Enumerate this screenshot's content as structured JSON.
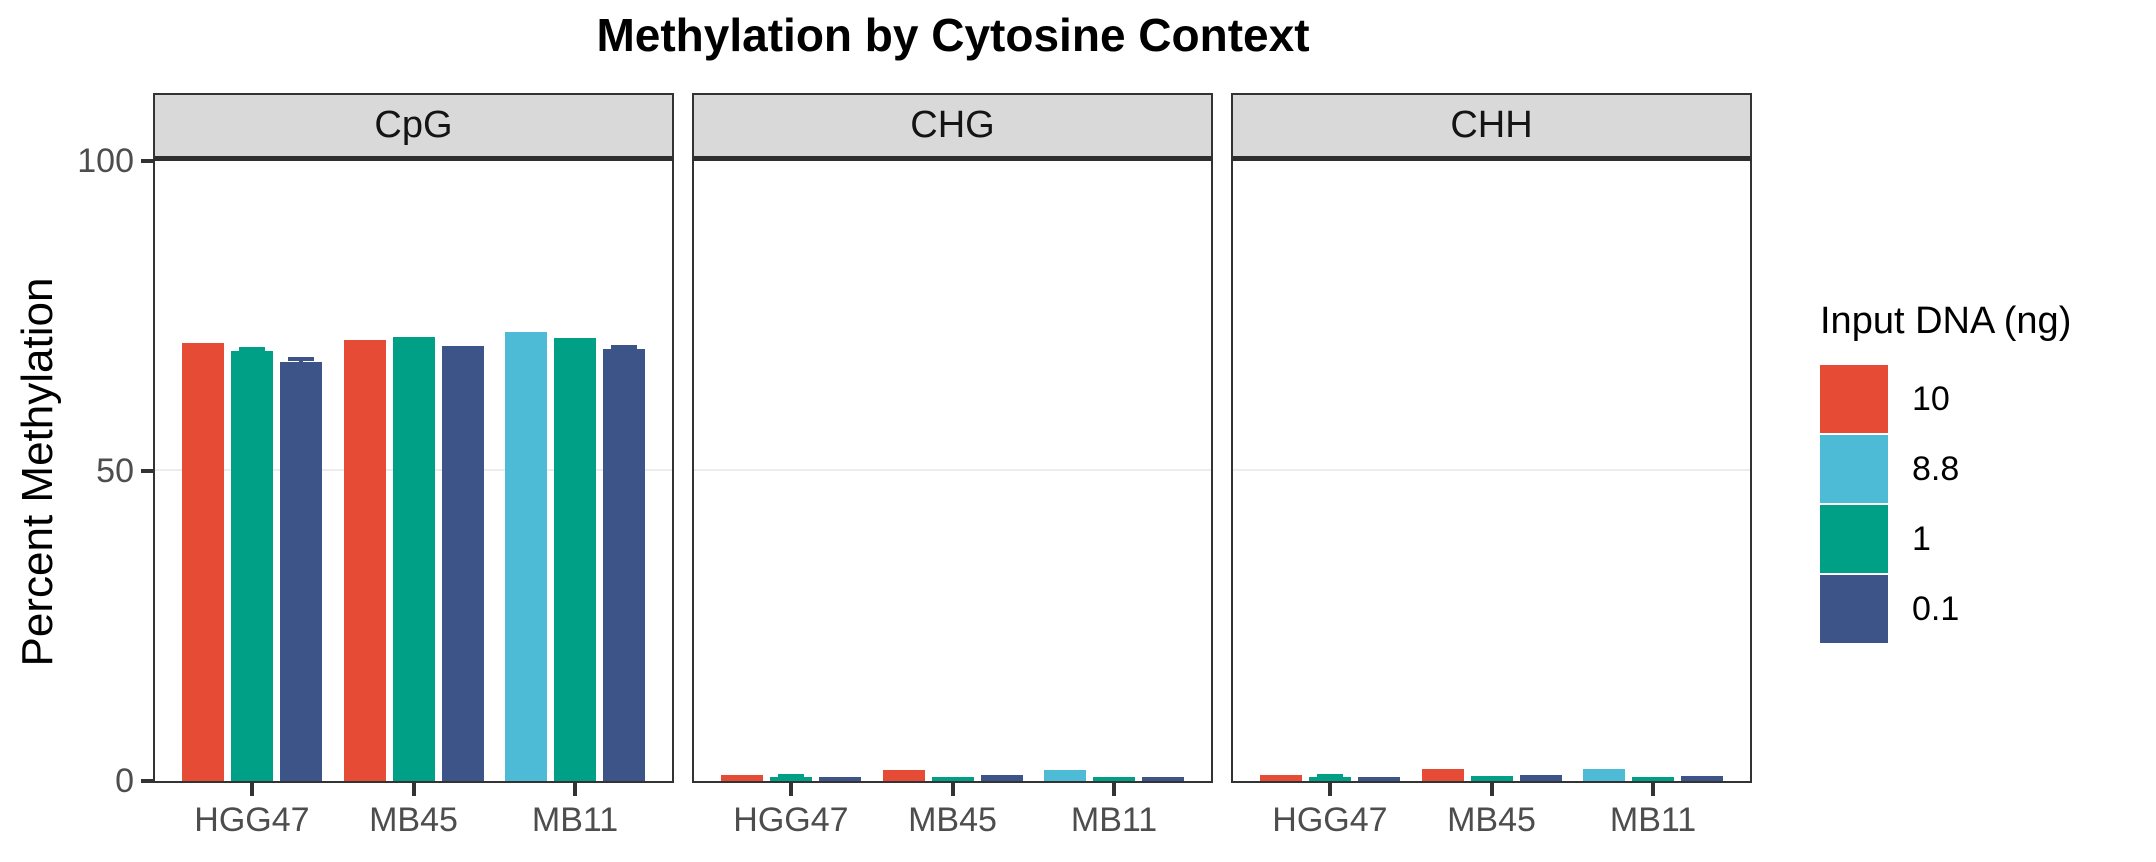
{
  "chart_data": {
    "type": "bar",
    "title": "Methylation by Cytosine Context",
    "ylabel": "Percent Methylation",
    "xlabel": "",
    "ylim": [
      0,
      100
    ],
    "yticks": [
      0,
      50,
      100
    ],
    "grid": {
      "y_gridline_at": 50,
      "gridline_color": "#ededed"
    },
    "strip_fill": "#D9D9D9",
    "axis_text_color": "#4d4d4d",
    "series_order": [
      "10",
      "8.8",
      "1",
      "0.1"
    ],
    "colors": {
      "10": "#E64B35",
      "8.8": "#4DBBD5",
      "1": "#00A087",
      "0.1": "#3C5488"
    },
    "facets": [
      {
        "label": "CpG",
        "groups": [
          {
            "category": "HGG47",
            "bars": [
              {
                "series": "10",
                "value": 70.6,
                "se": 0
              },
              {
                "series": "1",
                "value": 69.4,
                "se": 0.6
              },
              {
                "series": "0.1",
                "value": 67.6,
                "se": 0.8
              }
            ]
          },
          {
            "category": "MB45",
            "bars": [
              {
                "series": "10",
                "value": 71.2,
                "se": 0
              },
              {
                "series": "1",
                "value": 71.6,
                "se": 0
              },
              {
                "series": "0.1",
                "value": 70.1,
                "se": 0
              }
            ]
          },
          {
            "category": "MB11",
            "bars": [
              {
                "series": "8.8",
                "value": 72.4,
                "se": 0
              },
              {
                "series": "1",
                "value": 71.4,
                "se": 0
              },
              {
                "series": "0.1",
                "value": 69.7,
                "se": 0.7
              }
            ]
          }
        ]
      },
      {
        "label": "CHG",
        "groups": [
          {
            "category": "HGG47",
            "bars": [
              {
                "series": "10",
                "value": 0.9,
                "se": 0
              },
              {
                "series": "1",
                "value": 0.6,
                "se": 0.15
              },
              {
                "series": "0.1",
                "value": 0.6,
                "se": 0
              }
            ]
          },
          {
            "category": "MB45",
            "bars": [
              {
                "series": "10",
                "value": 1.8,
                "se": 0
              },
              {
                "series": "1",
                "value": 0.7,
                "se": 0
              },
              {
                "series": "0.1",
                "value": 1.0,
                "se": 0
              }
            ]
          },
          {
            "category": "MB11",
            "bars": [
              {
                "series": "8.8",
                "value": 1.8,
                "se": 0
              },
              {
                "series": "1",
                "value": 0.6,
                "se": 0
              },
              {
                "series": "0.1",
                "value": 0.7,
                "se": 0
              }
            ]
          }
        ]
      },
      {
        "label": "CHH",
        "groups": [
          {
            "category": "HGG47",
            "bars": [
              {
                "series": "10",
                "value": 1.0,
                "se": 0
              },
              {
                "series": "1",
                "value": 0.6,
                "se": 0.15
              },
              {
                "series": "0.1",
                "value": 0.7,
                "se": 0
              }
            ]
          },
          {
            "category": "MB45",
            "bars": [
              {
                "series": "10",
                "value": 1.9,
                "se": 0
              },
              {
                "series": "1",
                "value": 0.8,
                "se": 0
              },
              {
                "series": "0.1",
                "value": 1.0,
                "se": 0
              }
            ]
          },
          {
            "category": "MB11",
            "bars": [
              {
                "series": "8.8",
                "value": 2.0,
                "se": 0
              },
              {
                "series": "1",
                "value": 0.6,
                "se": 0
              },
              {
                "series": "0.1",
                "value": 0.8,
                "se": 0
              }
            ]
          }
        ]
      }
    ],
    "legend": {
      "title": "Input DNA (ng)",
      "position": "right",
      "entries": [
        {
          "label": "10",
          "color": "#E64B35"
        },
        {
          "label": "8.8",
          "color": "#4DBBD5"
        },
        {
          "label": "1",
          "color": "#00A087"
        },
        {
          "label": "0.1",
          "color": "#3C5488"
        }
      ]
    }
  }
}
